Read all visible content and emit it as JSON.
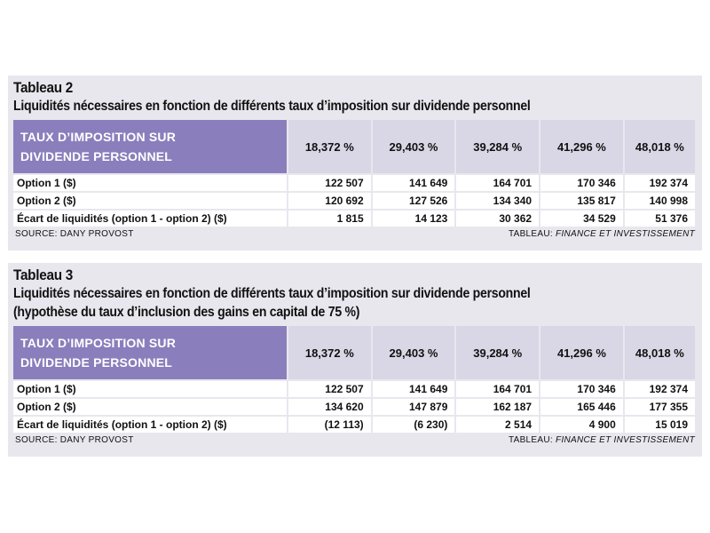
{
  "tables": [
    {
      "number": "Tableau 2",
      "title_lines": [
        "Liquidités nécessaires en fonction de différents taux d’imposition sur dividende personnel"
      ],
      "header_label": [
        "TAUX D’IMPOSITION SUR",
        "DIVIDENDE PERSONNEL"
      ],
      "columns": [
        "18,372 %",
        "29,403 %",
        "39,284 %",
        "41,296 %",
        "48,018 %"
      ],
      "rows": [
        {
          "label": "Option 1 ($)",
          "values": [
            "122 507",
            "141 649",
            "164 701",
            "170 346",
            "192 374"
          ]
        },
        {
          "label": "Option 2 ($)",
          "values": [
            "120 692",
            "127 526",
            "134 340",
            "135 817",
            "140 998"
          ]
        },
        {
          "label": "Écart de liquidités (option 1 - option 2) ($)",
          "values": [
            "1 815",
            "14 123",
            "30 362",
            "34 529",
            "51 376"
          ]
        }
      ],
      "source": "SOURCE: DANY PROVOST",
      "credit_prefix": "TABLEAU: ",
      "credit_italic": "FINANCE ET INVESTISSEMENT"
    },
    {
      "number": "Tableau 3",
      "title_lines": [
        "Liquidités nécessaires en fonction de différents taux d’imposition sur dividende personnel",
        "(hypothèse du taux d’inclusion des gains en capital de 75 %)"
      ],
      "header_label": [
        "TAUX D’IMPOSITION SUR",
        "DIVIDENDE PERSONNEL"
      ],
      "columns": [
        "18,372 %",
        "29,403 %",
        "39,284 %",
        "41,296 %",
        "48,018 %"
      ],
      "rows": [
        {
          "label": "Option 1 ($)",
          "values": [
            "122 507",
            "141 649",
            "164 701",
            "170 346",
            "192 374"
          ]
        },
        {
          "label": "Option 2 ($)",
          "values": [
            "134 620",
            "147 879",
            "162 187",
            "165 446",
            "177 355"
          ]
        },
        {
          "label": "Écart de liquidités (option 1 - option 2) ($)",
          "values": [
            "(12 113)",
            "(6 230)",
            "2 514",
            "4 900",
            "15 019"
          ]
        }
      ],
      "source": "SOURCE: DANY PROVOST",
      "credit_prefix": "TABLEAU: ",
      "credit_italic": "FINANCE ET INVESTISSEMENT"
    }
  ]
}
